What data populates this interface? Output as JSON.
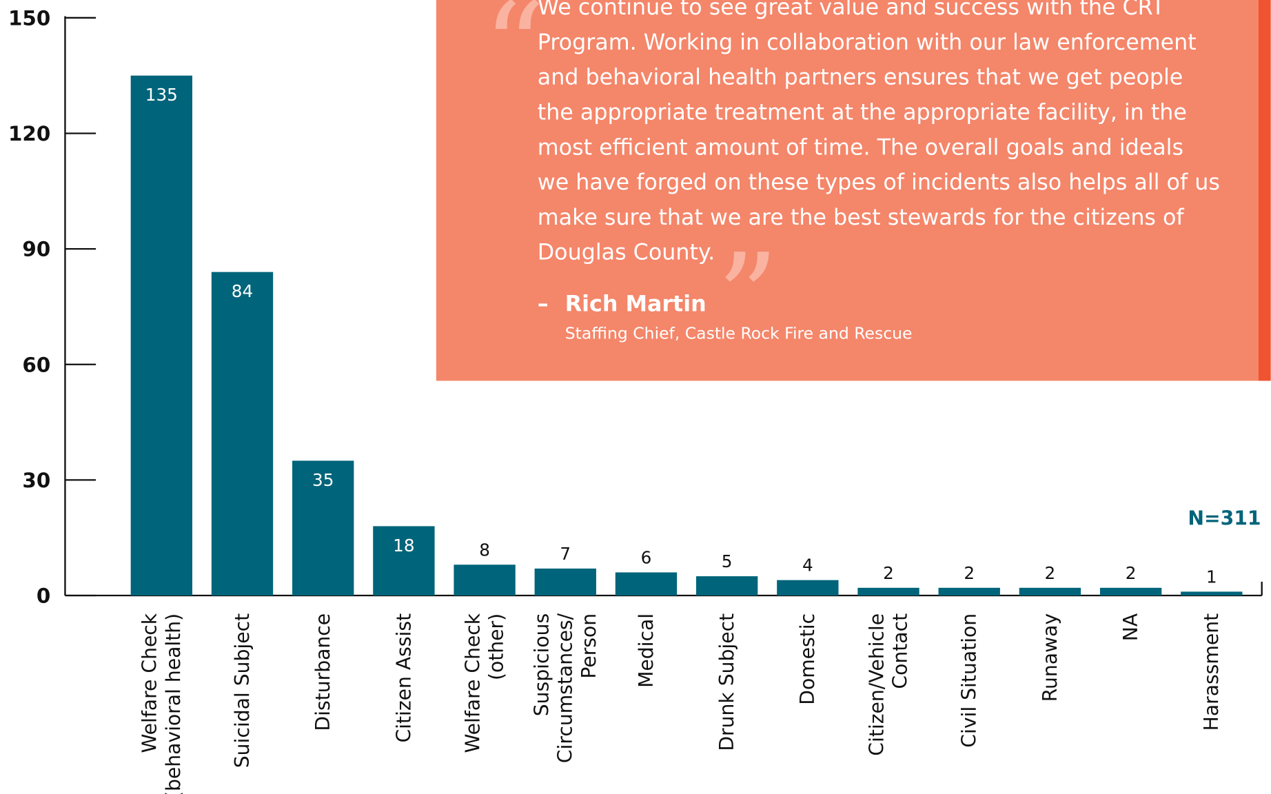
{
  "chart_data": {
    "type": "bar",
    "categories": [
      "Welfare Check\n(behavioral health)",
      "Suicidal Subject",
      "Disturbance",
      "Citizen Assist",
      "Welfare Check\n(other)",
      "Suspicious\nCircumstances/\nPerson",
      "Medical",
      "Drunk Subject",
      "Domestic",
      "Citizen/Vehicle\nContact",
      "Civil Situation",
      "Runaway",
      "NA",
      "Harassment"
    ],
    "values": [
      135,
      84,
      35,
      18,
      8,
      7,
      6,
      5,
      4,
      2,
      2,
      2,
      2,
      1
    ],
    "color": "#00647a",
    "ylim": [
      0,
      150
    ],
    "yticks": [
      0,
      30,
      60,
      90,
      120,
      150
    ],
    "annotation": "N=311"
  },
  "quote": {
    "open_mark": "“",
    "close_mark": "”",
    "lines": [
      "We continue to see great value and success with the CRT",
      "Program. Working in collaboration with our law enforcement",
      "and behavioral health partners ensures that we get people",
      "the appropriate treatment at the appropriate facility, in the",
      "most efficient amount of time. The overall goals and ideals",
      "we have forged on these types of incidents also helps all of us",
      "make sure that we are the best stewards for the citizens of",
      "Douglas County."
    ],
    "dash": "–",
    "name": "Rich Martin",
    "role": "Staffing Chief, Castle Rock Fire and Rescue"
  }
}
